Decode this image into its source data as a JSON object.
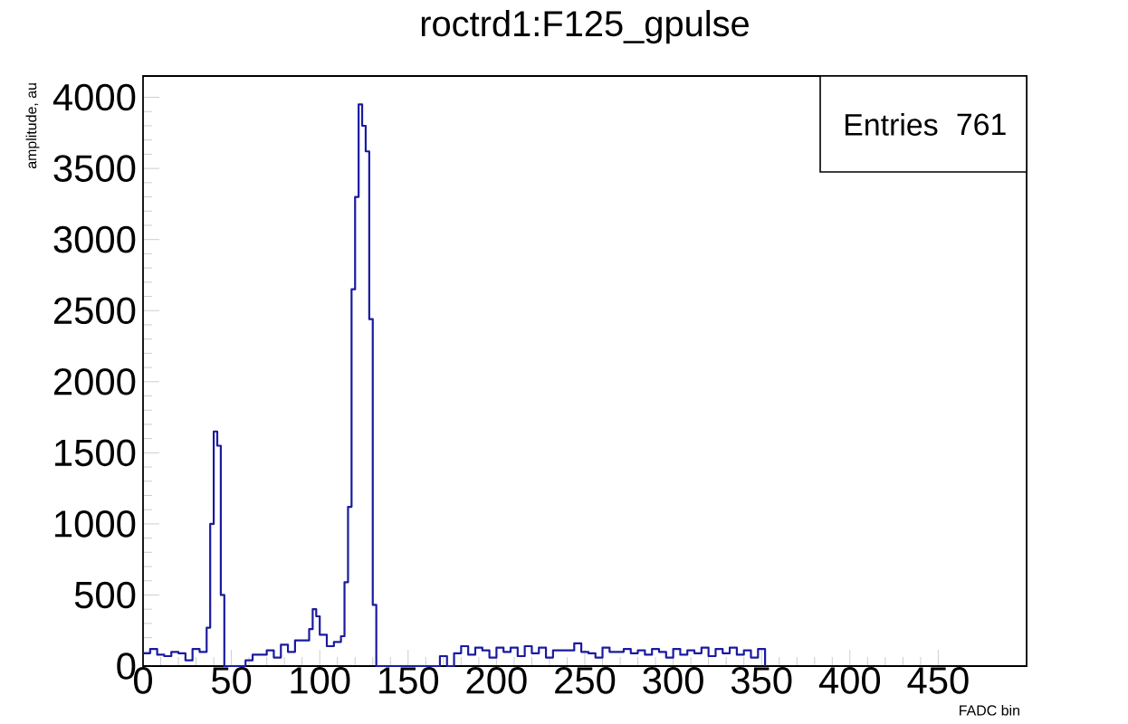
{
  "chart_data": {
    "type": "histogram",
    "title": "roctrd1:F125_gpulse",
    "xlabel": "FADC bin",
    "ylabel": "amplitude, au",
    "annotations": [
      "Entries",
      "761"
    ],
    "color": "#1a1aa0",
    "bins": [
      0,
      4,
      8,
      12,
      16,
      20,
      24,
      28,
      32,
      36,
      38,
      40,
      42,
      44,
      46,
      58,
      62,
      66,
      70,
      74,
      78,
      82,
      86,
      90,
      94,
      96,
      98,
      100,
      104,
      108,
      112,
      114,
      116,
      118,
      120,
      122,
      124,
      126,
      128,
      130,
      132,
      168,
      172,
      176,
      180,
      184,
      188,
      192,
      196,
      200,
      204,
      208,
      212,
      216,
      220,
      224,
      228,
      232,
      236,
      240,
      244,
      248,
      252,
      256,
      260,
      264,
      268,
      272,
      276,
      280,
      284,
      288,
      292,
      296,
      300,
      304,
      308,
      312,
      316,
      320,
      324,
      328,
      332,
      336,
      340,
      344,
      348,
      352
    ],
    "values": [
      90,
      120,
      80,
      70,
      100,
      90,
      40,
      120,
      100,
      270,
      1000,
      1650,
      1550,
      500,
      0,
      40,
      80,
      80,
      110,
      60,
      150,
      100,
      180,
      180,
      260,
      400,
      350,
      220,
      140,
      170,
      210,
      590,
      1120,
      2650,
      3300,
      3950,
      3800,
      3620,
      2440,
      430,
      0,
      70,
      0,
      90,
      140,
      80,
      130,
      110,
      60,
      130,
      100,
      130,
      70,
      140,
      90,
      130,
      60,
      110,
      110,
      110,
      160,
      100,
      90,
      60,
      130,
      100,
      100,
      120,
      90,
      110,
      80,
      120,
      100,
      60,
      120,
      80,
      110,
      90,
      130,
      70,
      120,
      90,
      130,
      80,
      110,
      60,
      120
    ],
    "xlim": [
      0,
      500
    ],
    "xticks": [
      0,
      50,
      100,
      150,
      200,
      250,
      300,
      350,
      400,
      450
    ],
    "ylim": [
      0,
      4150
    ],
    "yticks": [
      0,
      500,
      1000,
      1500,
      2000,
      2500,
      3000,
      3500,
      4000
    ],
    "grid": false
  }
}
